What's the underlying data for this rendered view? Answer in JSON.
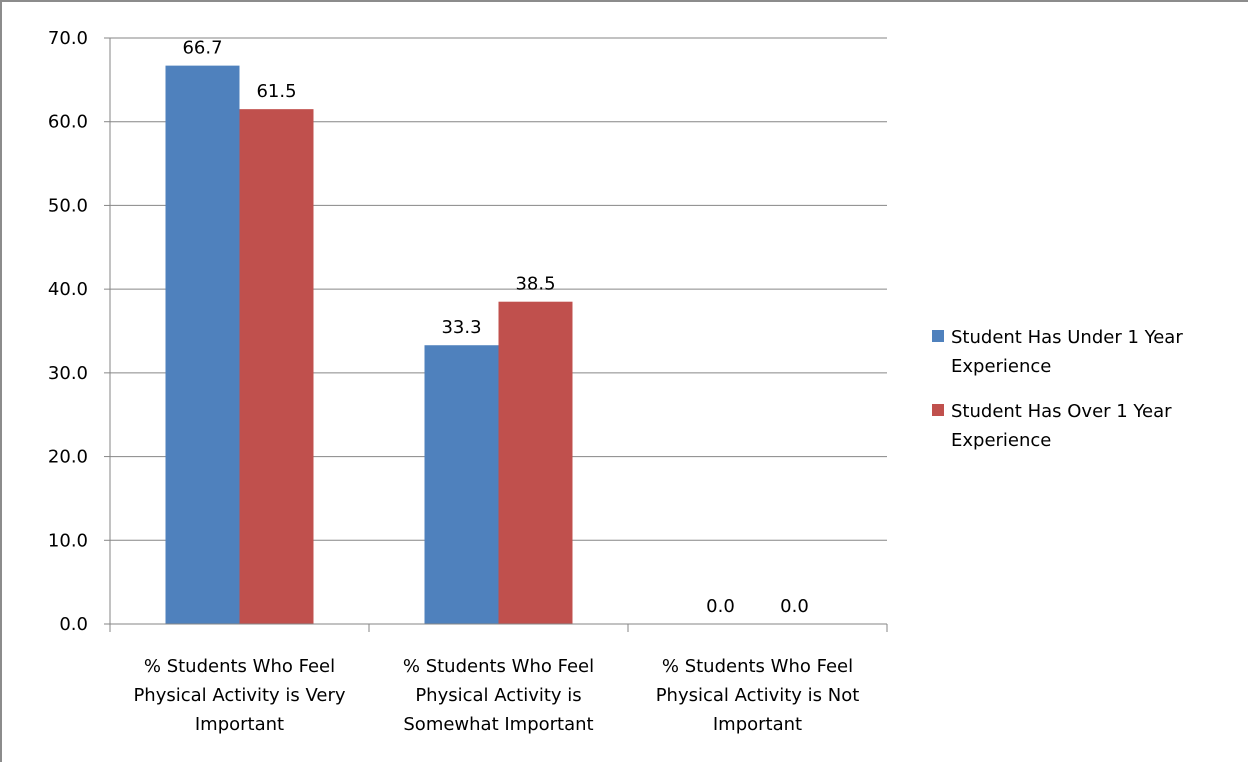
{
  "chart_data": {
    "type": "bar",
    "title": "",
    "xlabel": "",
    "ylabel": "",
    "ylim": [
      0,
      70
    ],
    "ytick_step": 10,
    "ytick_labels": [
      "0.0",
      "10.0",
      "20.0",
      "30.0",
      "40.0",
      "50.0",
      "60.0",
      "70.0"
    ],
    "grid": true,
    "legend_position": "right",
    "categories": [
      [
        "% Students Who Feel",
        "Physical Activity is Very",
        "Important"
      ],
      [
        "% Students Who Feel",
        "Physical Activity is",
        "Somewhat Important"
      ],
      [
        "% Students Who Feel",
        "Physical Activity is Not",
        "Important"
      ]
    ],
    "series": [
      {
        "name": "Student Has Under 1 Year Experience",
        "legend_lines": [
          "Student Has Under 1 Year",
          "Experience"
        ],
        "color": "#4f81bd",
        "values": [
          66.7,
          33.3,
          0.0
        ],
        "labels": [
          "66.7",
          "33.3",
          "0.0"
        ]
      },
      {
        "name": "Student Has Over 1 Year Experience",
        "legend_lines": [
          "Student Has Over 1 Year",
          "Experience"
        ],
        "color": "#c0504d",
        "values": [
          61.5,
          38.5,
          0.0
        ],
        "labels": [
          "61.5",
          "38.5",
          "0.0"
        ]
      }
    ]
  }
}
